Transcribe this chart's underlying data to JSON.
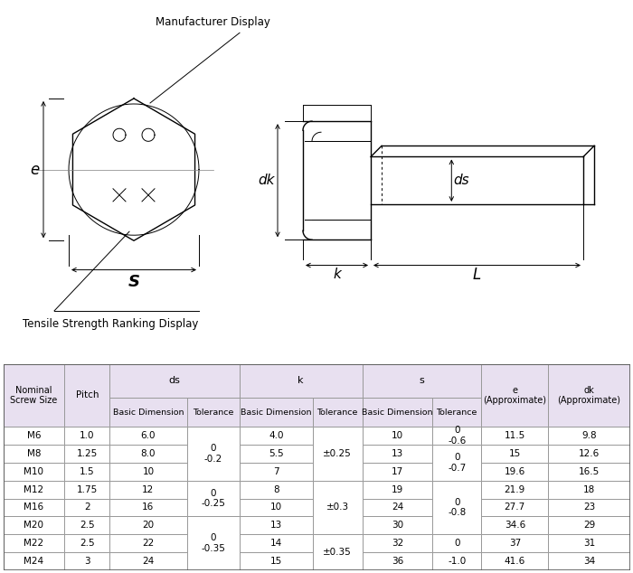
{
  "bg_color": "#ffffff",
  "table_header_bg": "#e8e0f0",
  "manufacturer_label": "Manufacturer Display",
  "tensile_label": "Tensile Strength Ranking Display",
  "rows": [
    [
      "M6",
      "1.0",
      "6.0",
      "0\n-0.2",
      "4.0",
      "±0.25",
      "10",
      "0\n-0.6",
      "11.5",
      "9.8"
    ],
    [
      "M8",
      "1.25",
      "8.0",
      "",
      "5.5",
      "",
      "13",
      "0\n-0.7",
      "15",
      "12.6"
    ],
    [
      "M10",
      "1.5",
      "10",
      "",
      "7",
      "",
      "17",
      "",
      "19.6",
      "16.5"
    ],
    [
      "M12",
      "1.75",
      "12",
      "0\n-0.25",
      "8",
      "±0.3",
      "19",
      "0\n-0.8",
      "21.9",
      "18"
    ],
    [
      "M16",
      "2",
      "16",
      "",
      "10",
      "",
      "24",
      "",
      "27.7",
      "23"
    ],
    [
      "M20",
      "2.5",
      "20",
      "0\n-0.35",
      "13",
      "",
      "30",
      "",
      "34.6",
      "29"
    ],
    [
      "M22",
      "2.5",
      "22",
      "",
      "14",
      "±0.35",
      "32",
      "0",
      "37",
      "31"
    ],
    [
      "M24",
      "3",
      "24",
      "",
      "15",
      "",
      "36",
      "-1.0",
      "41.6",
      "34"
    ]
  ],
  "ds_tol_merges": [
    [
      0,
      2,
      "0\n-0.2"
    ],
    [
      3,
      4,
      "0\n-0.25"
    ],
    [
      5,
      7,
      "0\n-0.35"
    ]
  ],
  "k_tol_merges": [
    [
      0,
      2,
      "±0.25"
    ],
    [
      3,
      5,
      "±0.3"
    ],
    [
      6,
      7,
      "±0.35"
    ]
  ],
  "s_tol_merges": [
    [
      0,
      0,
      "0\n-0.6"
    ],
    [
      1,
      2,
      "0\n-0.7"
    ],
    [
      3,
      5,
      "0\n-0.8"
    ],
    [
      6,
      6,
      "0"
    ],
    [
      7,
      7,
      "-1.0"
    ]
  ]
}
